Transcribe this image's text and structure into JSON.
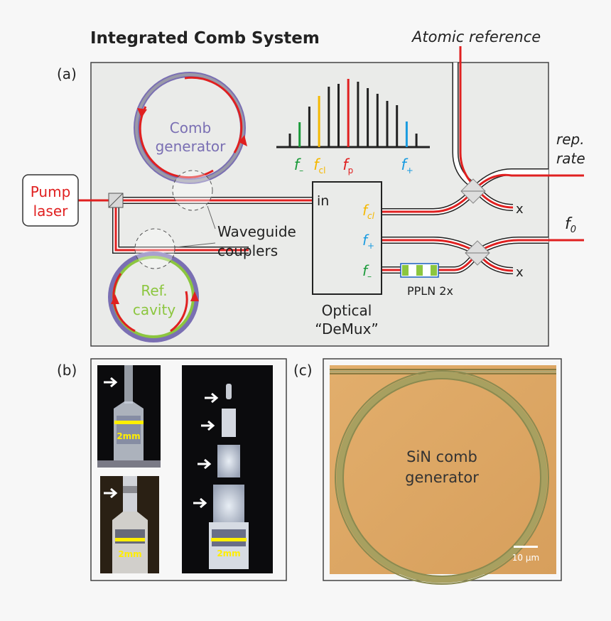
{
  "title": "Integrated Comb System",
  "atomic_reference": "Atomic reference",
  "panel_a": {
    "label": "(a)",
    "pump_laser": [
      "Pump",
      "laser"
    ],
    "comb_generator": [
      "Comb",
      "generator"
    ],
    "ref_cavity": [
      "Ref.",
      "cavity"
    ],
    "waveguide_couplers": [
      "Waveguide",
      "couplers"
    ],
    "demux_input": "in",
    "demux_outputs": [
      {
        "base": "f",
        "sub": "cl",
        "color": "#f5b800"
      },
      {
        "base": "f",
        "sub": "+",
        "color": "#1a9be0"
      },
      {
        "base": "f",
        "sub": "–",
        "color": "#1a9a3a"
      }
    ],
    "demux_caption": [
      "Optical",
      "“DeMux”"
    ],
    "ppln": "PPLN 2x",
    "rep_rate": [
      "rep.",
      "rate"
    ],
    "f0": {
      "base": "f",
      "sub": "0"
    },
    "terminated": "x",
    "spectrum": {
      "relative_heights": [
        0.19,
        0.35,
        0.57,
        0.72,
        0.85,
        0.89,
        0.96,
        0.92,
        0.83,
        0.75,
        0.65,
        0.59,
        0.36,
        0.19
      ],
      "highlight": {
        "1": "#1a9a3a",
        "3": "#f5b800",
        "6": "#e02020",
        "12": "#1a9be0"
      },
      "labels": [
        {
          "base": "f",
          "sub": "–",
          "color": "#1a9a3a"
        },
        {
          "base": "f",
          "sub": "cl",
          "color": "#f5b800"
        },
        {
          "base": "f",
          "sub": "p",
          "color": "#e02020"
        },
        {
          "base": "f",
          "sub": "+",
          "color": "#1a9be0"
        }
      ]
    },
    "colors": {
      "pump": "#e02020",
      "ring": "#7a6fb3",
      "ref_ring": "#8cc63f",
      "panel_bg": "#eaebe9"
    }
  },
  "panel_b": {
    "label": "(b)",
    "scale_labels": [
      "2mm",
      "2mm",
      "2mm"
    ]
  },
  "panel_c": {
    "label": "(c)",
    "text": [
      "SiN comb",
      "generator"
    ],
    "scale_bar": "10 μm"
  }
}
